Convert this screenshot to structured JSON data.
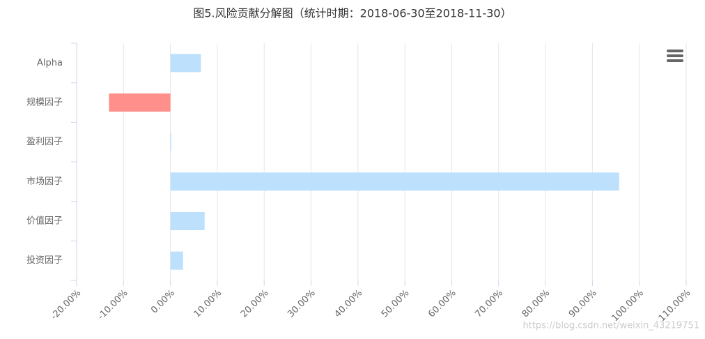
{
  "chart_data": {
    "type": "bar",
    "orientation": "horizontal",
    "title": "图5.风险贡献分解图（统计时期：2018-06-30至2018-11-30）",
    "categories": [
      "Alpha",
      "规模因子",
      "盈利因子",
      "市场因子",
      "价值因子",
      "投资因子"
    ],
    "values": [
      6.5,
      -13.1,
      0.2,
      95.7,
      7.3,
      2.7
    ],
    "color": "#bde0fc",
    "negative_color": "#ff8f8a",
    "xlim": [
      -20,
      110
    ],
    "xticks": [
      {
        "value": -20,
        "label": "-20.00%"
      },
      {
        "value": -10,
        "label": "-10.00%"
      },
      {
        "value": 0,
        "label": "0.00%"
      },
      {
        "value": 10,
        "label": "10.00%"
      },
      {
        "value": 20,
        "label": "20.00%"
      },
      {
        "value": 30,
        "label": "30.00%"
      },
      {
        "value": 40,
        "label": "40.00%"
      },
      {
        "value": 50,
        "label": "50.00%"
      },
      {
        "value": 60,
        "label": "60.00%"
      },
      {
        "value": 70,
        "label": "70.00%"
      },
      {
        "value": 80,
        "label": "80.00%"
      },
      {
        "value": 90,
        "label": "90.00%"
      },
      {
        "value": 100,
        "label": "100.00%"
      },
      {
        "value": 110,
        "label": "110.00%"
      }
    ],
    "grid": true,
    "watermark": "https://blog.csdn.net/weixin_43219751"
  }
}
